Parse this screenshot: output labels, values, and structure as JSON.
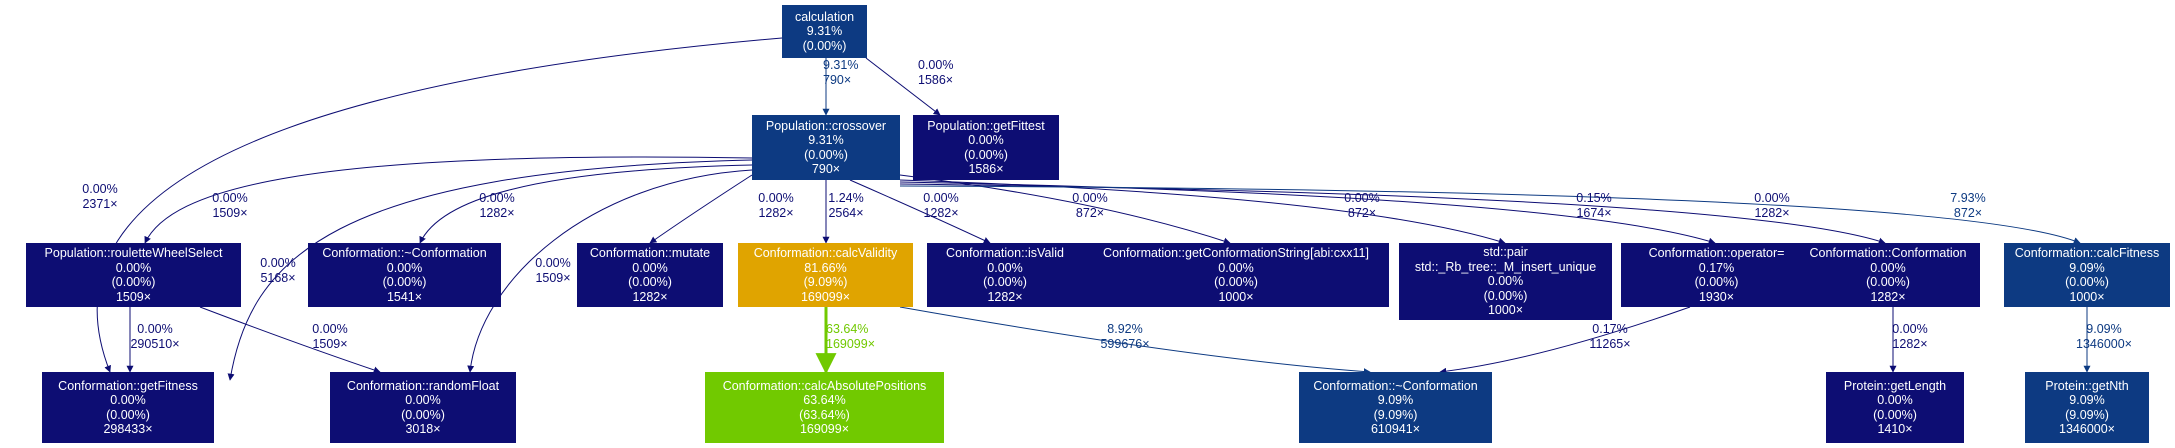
{
  "nodes": [
    {
      "id": "calculation",
      "lines": [
        "calculation",
        "9.31%",
        "(0.00%)"
      ],
      "color": "#0d3a82"
    },
    {
      "id": "crossover",
      "lines": [
        "Population::crossover",
        "9.31%",
        "(0.00%)",
        "790×"
      ],
      "color": "#0d3a82"
    },
    {
      "id": "getFittest_pop",
      "lines": [
        "Population::getFittest",
        "0.00%",
        "(0.00%)",
        "1586×"
      ],
      "color": "#0d0d73"
    },
    {
      "id": "rouletteWheelSelect",
      "lines": [
        "Population::rouletteWheelSelect",
        "0.00%",
        "(0.00%)",
        "1509×"
      ],
      "color": "#0d0d73"
    },
    {
      "id": "conf_destructor_a",
      "lines": [
        "Conformation::~Conformation",
        "0.00%",
        "(0.00%)",
        "1541×"
      ],
      "color": "#0d0d73"
    },
    {
      "id": "mutate",
      "lines": [
        "Conformation::mutate",
        "0.00%",
        "(0.00%)",
        "1282×"
      ],
      "color": "#0d0d73"
    },
    {
      "id": "calcValidity",
      "lines": [
        "Conformation::calcValidity",
        "81.66%",
        "(9.09%)",
        "169099×"
      ],
      "color": "#e0a400"
    },
    {
      "id": "isValid",
      "lines": [
        "Conformation::isValid",
        "0.00%",
        "(0.00%)",
        "1282×"
      ],
      "color": "#0d0d73"
    },
    {
      "id": "getConformationString",
      "lines": [
        "Conformation::getConformationString[abi:cxx11]",
        "0.00%",
        "(0.00%)",
        "1000×"
      ],
      "color": "#0d0d73"
    },
    {
      "id": "insert_unique",
      "lines": [
        "std::pair",
        "std::_Rb_tree::_M_insert_unique",
        "0.00%",
        "(0.00%)",
        "1000×"
      ],
      "color": "#0d0d73"
    },
    {
      "id": "operator_eq",
      "lines": [
        "Conformation::operator=",
        "0.17%",
        "(0.00%)",
        "1930×"
      ],
      "color": "#0d0d73"
    },
    {
      "id": "conf_ctor",
      "lines": [
        "Conformation::Conformation",
        "0.00%",
        "(0.00%)",
        "1282×"
      ],
      "color": "#0d0d73"
    },
    {
      "id": "calcFitness",
      "lines": [
        "Conformation::calcFitness",
        "9.09%",
        "(0.00%)",
        "1000×"
      ],
      "color": "#0d3a82"
    },
    {
      "id": "getFitness_conf",
      "lines": [
        "Conformation::getFitness",
        "0.00%",
        "(0.00%)",
        "298433×"
      ],
      "color": "#0d0d73"
    },
    {
      "id": "randomFloat",
      "lines": [
        "Conformation::randomFloat",
        "0.00%",
        "(0.00%)",
        "3018×"
      ],
      "color": "#0d0d73"
    },
    {
      "id": "calcAbsolutePositions",
      "lines": [
        "Conformation::calcAbsolutePositions",
        "63.64%",
        "(63.64%)",
        "169099×"
      ],
      "color": "#71c900"
    },
    {
      "id": "conf_destructor_b",
      "lines": [
        "Conformation::~Conformation",
        "9.09%",
        "(9.09%)",
        "610941×"
      ],
      "color": "#0d3a82"
    },
    {
      "id": "getLength",
      "lines": [
        "Protein::getLength",
        "0.00%",
        "(0.00%)",
        "1410×"
      ],
      "color": "#0d0d73"
    },
    {
      "id": "getNth",
      "lines": [
        "Protein::getNth",
        "9.09%",
        "(9.09%)",
        "1346000×"
      ],
      "color": "#0d3a82"
    }
  ],
  "edges": [
    {
      "from": "calculation",
      "to": "crossover",
      "lines": [
        "9.31%",
        "790×"
      ],
      "color": "#0d3a82"
    },
    {
      "from": "calculation",
      "to": "getFittest_pop",
      "lines": [
        "0.00%",
        "1586×"
      ],
      "color": "#0d0d73"
    },
    {
      "from": "calculation",
      "to": "getFitness_conf",
      "lines": [
        "0.00%",
        "2371×"
      ],
      "color": "#0d0d73"
    },
    {
      "from": "crossover",
      "to": "rouletteWheelSelect",
      "lines": [
        "0.00%",
        "1509×"
      ],
      "color": "#0d0d73"
    },
    {
      "from": "crossover",
      "to": "getFitness_conf",
      "lines": [
        "0.00%",
        "5168×"
      ],
      "color": "#0d0d73"
    },
    {
      "from": "crossover",
      "to": "conf_destructor_a",
      "lines": [
        "0.00%",
        "1282×"
      ],
      "color": "#0d0d73"
    },
    {
      "from": "crossover",
      "to": "randomFloat",
      "lines": [
        "0.00%",
        "1509×"
      ],
      "color": "#0d0d73"
    },
    {
      "from": "crossover",
      "to": "mutate",
      "lines": [
        "0.00%",
        "1282×"
      ],
      "color": "#0d0d73"
    },
    {
      "from": "crossover",
      "to": "calcValidity",
      "lines": [
        "1.24%",
        "2564×"
      ],
      "color": "#0d0d73"
    },
    {
      "from": "crossover",
      "to": "isValid",
      "lines": [
        "0.00%",
        "1282×"
      ],
      "color": "#0d0d73"
    },
    {
      "from": "crossover",
      "to": "getConformationString",
      "lines": [
        "0.00%",
        "872×"
      ],
      "color": "#0d0d73"
    },
    {
      "from": "crossover",
      "to": "insert_unique",
      "lines": [
        "0.00%",
        "872×"
      ],
      "color": "#0d0d73"
    },
    {
      "from": "crossover",
      "to": "operator_eq",
      "lines": [
        "0.15%",
        "1674×"
      ],
      "color": "#0d0d73"
    },
    {
      "from": "crossover",
      "to": "conf_ctor",
      "lines": [
        "0.00%",
        "1282×"
      ],
      "color": "#0d0d73"
    },
    {
      "from": "crossover",
      "to": "calcFitness",
      "lines": [
        "7.93%",
        "872×"
      ],
      "color": "#0d3a82"
    },
    {
      "from": "rouletteWheelSelect",
      "to": "getFitness_conf",
      "lines": [
        "0.00%",
        "290510×"
      ],
      "color": "#0d0d73"
    },
    {
      "from": "rouletteWheelSelect",
      "to": "randomFloat",
      "lines": [
        "0.00%",
        "1509×"
      ],
      "color": "#0d0d73"
    },
    {
      "from": "calcValidity",
      "to": "calcAbsolutePositions",
      "lines": [
        "63.64%",
        "169099×"
      ],
      "color": "#71c900"
    },
    {
      "from": "calcValidity",
      "to": "conf_destructor_b",
      "lines": [
        "8.92%",
        "599676×"
      ],
      "color": "#0d3a82"
    },
    {
      "from": "operator_eq",
      "to": "conf_destructor_b",
      "lines": [
        "0.17%",
        "11265×"
      ],
      "color": "#0d0d73"
    },
    {
      "from": "conf_ctor",
      "to": "getLength",
      "lines": [
        "0.00%",
        "1282×"
      ],
      "color": "#0d0d73"
    },
    {
      "from": "calcFitness",
      "to": "getNth",
      "lines": [
        "9.09%",
        "1346000×"
      ],
      "color": "#0d3a82"
    }
  ]
}
